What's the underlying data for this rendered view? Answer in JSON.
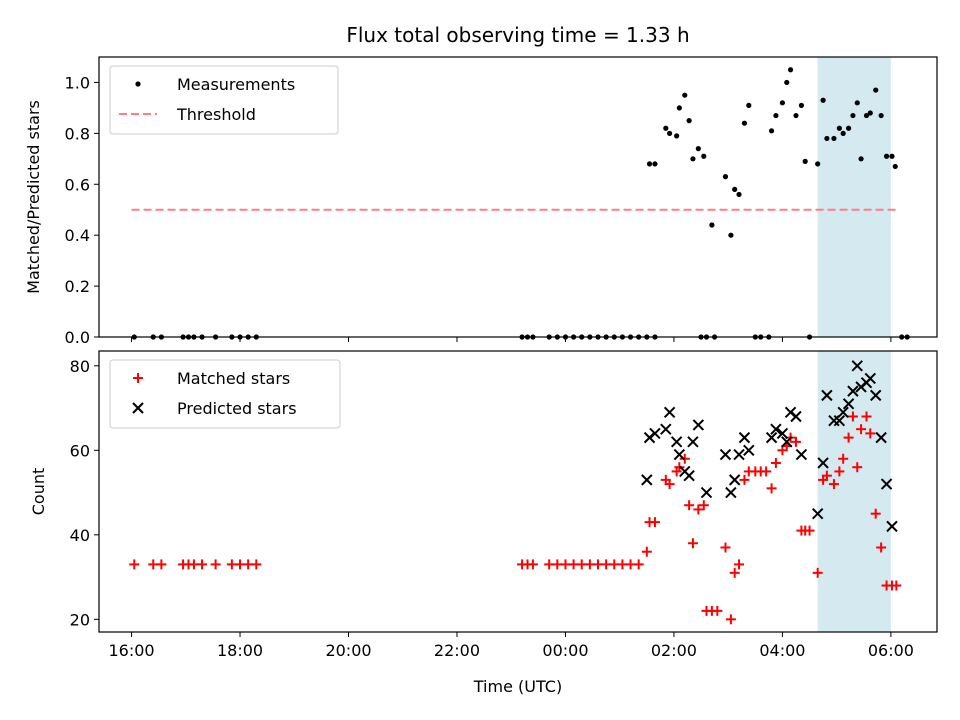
{
  "chart_data": {
    "title": "Flux total observing time = 1.33 h",
    "xlabel": "Time (UTC)",
    "x_units": "hours since 16:00 UTC",
    "x_ticks": [
      {
        "x": 0,
        "label": "16:00"
      },
      {
        "x": 2,
        "label": "18:00"
      },
      {
        "x": 4,
        "label": "20:00"
      },
      {
        "x": 6,
        "label": "22:00"
      },
      {
        "x": 8,
        "label": "00:00"
      },
      {
        "x": 10,
        "label": "02:00"
      },
      {
        "x": 12,
        "label": "04:00"
      },
      {
        "x": 14,
        "label": "06:00"
      }
    ],
    "xlim": [
      -0.6,
      14.85
    ],
    "highlight_span": [
      12.65,
      14.0
    ],
    "highlight_color": "#d4eaf0",
    "panels": [
      {
        "type": "scatter",
        "ylabel": "Matched/Predicted stars",
        "ylim": [
          0,
          1.1
        ],
        "y_ticks": [
          "0.0",
          "0.2",
          "0.4",
          "0.6",
          "0.8",
          "1.0"
        ],
        "legend": [
          "Measurements",
          "Threshold"
        ],
        "legend_position": "top-left",
        "threshold": {
          "name": "Threshold",
          "y": 0.5,
          "x_range": [
            0,
            14.1
          ],
          "color": "#ff7f7f"
        },
        "series": [
          {
            "name": "Measurements",
            "color": "#000000",
            "points": [
              [
                0.05,
                0
              ],
              [
                0.4,
                0
              ],
              [
                0.55,
                0
              ],
              [
                0.95,
                0
              ],
              [
                1.05,
                0
              ],
              [
                1.15,
                0
              ],
              [
                1.3,
                0
              ],
              [
                1.55,
                0
              ],
              [
                1.85,
                0
              ],
              [
                2.0,
                0
              ],
              [
                2.15,
                0
              ],
              [
                2.3,
                0
              ],
              [
                7.2,
                0
              ],
              [
                7.3,
                0
              ],
              [
                7.4,
                0
              ],
              [
                7.7,
                0
              ],
              [
                7.85,
                0
              ],
              [
                8.0,
                0
              ],
              [
                8.15,
                0
              ],
              [
                8.3,
                0
              ],
              [
                8.45,
                0
              ],
              [
                8.6,
                0
              ],
              [
                8.75,
                0
              ],
              [
                8.9,
                0
              ],
              [
                9.05,
                0
              ],
              [
                9.2,
                0
              ],
              [
                9.35,
                0
              ],
              [
                9.5,
                0
              ],
              [
                9.65,
                0
              ],
              [
                10.5,
                0
              ],
              [
                10.6,
                0
              ],
              [
                10.75,
                0
              ],
              [
                11.5,
                0
              ],
              [
                11.6,
                0
              ],
              [
                11.75,
                0
              ],
              [
                12.5,
                0
              ],
              [
                14.2,
                0
              ],
              [
                14.3,
                0
              ],
              [
                9.55,
                0.68
              ],
              [
                9.65,
                0.68
              ],
              [
                9.85,
                0.82
              ],
              [
                9.92,
                0.8
              ],
              [
                10.05,
                0.79
              ],
              [
                10.1,
                0.9
              ],
              [
                10.2,
                0.95
              ],
              [
                10.28,
                0.85
              ],
              [
                10.35,
                0.7
              ],
              [
                10.45,
                0.74
              ],
              [
                10.55,
                0.71
              ],
              [
                10.7,
                0.44
              ],
              [
                10.95,
                0.63
              ],
              [
                11.05,
                0.4
              ],
              [
                11.12,
                0.58
              ],
              [
                11.2,
                0.56
              ],
              [
                11.3,
                0.84
              ],
              [
                11.38,
                0.91
              ],
              [
                11.8,
                0.81
              ],
              [
                11.88,
                0.87
              ],
              [
                12.0,
                0.92
              ],
              [
                12.08,
                1.0
              ],
              [
                12.15,
                1.05
              ],
              [
                12.25,
                0.87
              ],
              [
                12.35,
                0.91
              ],
              [
                12.42,
                0.69
              ],
              [
                12.65,
                0.68
              ],
              [
                12.75,
                0.93
              ],
              [
                12.82,
                0.78
              ],
              [
                12.95,
                0.78
              ],
              [
                13.05,
                0.82
              ],
              [
                13.12,
                0.8
              ],
              [
                13.22,
                0.82
              ],
              [
                13.3,
                0.87
              ],
              [
                13.38,
                0.92
              ],
              [
                13.45,
                0.7
              ],
              [
                13.55,
                0.87
              ],
              [
                13.62,
                0.88
              ],
              [
                13.72,
                0.97
              ],
              [
                13.82,
                0.87
              ],
              [
                13.92,
                0.71
              ],
              [
                14.02,
                0.71
              ],
              [
                14.08,
                0.67
              ]
            ]
          }
        ]
      },
      {
        "type": "scatter",
        "ylabel": "Count",
        "ylim": [
          17,
          83.5
        ],
        "y_ticks": [
          "20",
          "40",
          "60",
          "80"
        ],
        "legend": [
          "Matched stars",
          "Predicted stars"
        ],
        "legend_position": "top-left",
        "series": [
          {
            "name": "Matched stars",
            "marker": "plus",
            "color": "#ff0000",
            "points": [
              [
                0.05,
                33
              ],
              [
                0.4,
                33
              ],
              [
                0.55,
                33
              ],
              [
                0.95,
                33
              ],
              [
                1.05,
                33
              ],
              [
                1.15,
                33
              ],
              [
                1.3,
                33
              ],
              [
                1.55,
                33
              ],
              [
                1.85,
                33
              ],
              [
                2.0,
                33
              ],
              [
                2.15,
                33
              ],
              [
                2.3,
                33
              ],
              [
                7.2,
                33
              ],
              [
                7.3,
                33
              ],
              [
                7.4,
                33
              ],
              [
                7.7,
                33
              ],
              [
                7.85,
                33
              ],
              [
                8.0,
                33
              ],
              [
                8.15,
                33
              ],
              [
                8.3,
                33
              ],
              [
                8.45,
                33
              ],
              [
                8.6,
                33
              ],
              [
                8.75,
                33
              ],
              [
                8.9,
                33
              ],
              [
                9.05,
                33
              ],
              [
                9.2,
                33
              ],
              [
                9.35,
                33
              ],
              [
                9.5,
                36
              ],
              [
                9.55,
                43
              ],
              [
                9.65,
                43
              ],
              [
                9.85,
                53
              ],
              [
                9.92,
                52
              ],
              [
                10.05,
                55
              ],
              [
                10.1,
                56
              ],
              [
                10.2,
                58
              ],
              [
                10.28,
                47
              ],
              [
                10.35,
                38
              ],
              [
                10.45,
                46
              ],
              [
                10.55,
                47
              ],
              [
                10.6,
                22
              ],
              [
                10.7,
                22
              ],
              [
                10.8,
                22
              ],
              [
                10.95,
                37
              ],
              [
                11.05,
                20
              ],
              [
                11.12,
                31
              ],
              [
                11.2,
                33
              ],
              [
                11.3,
                53
              ],
              [
                11.38,
                55
              ],
              [
                11.5,
                55
              ],
              [
                11.6,
                55
              ],
              [
                11.7,
                55
              ],
              [
                11.8,
                51
              ],
              [
                11.88,
                57
              ],
              [
                12.0,
                60
              ],
              [
                12.08,
                61
              ],
              [
                12.15,
                63
              ],
              [
                12.25,
                62
              ],
              [
                12.35,
                41
              ],
              [
                12.42,
                41
              ],
              [
                12.5,
                41
              ],
              [
                12.65,
                31
              ],
              [
                12.75,
                53
              ],
              [
                12.82,
                54
              ],
              [
                12.95,
                52
              ],
              [
                13.05,
                55
              ],
              [
                13.12,
                58
              ],
              [
                13.22,
                63
              ],
              [
                13.3,
                68
              ],
              [
                13.38,
                56
              ],
              [
                13.45,
                65
              ],
              [
                13.55,
                68
              ],
              [
                13.62,
                64
              ],
              [
                13.72,
                45
              ],
              [
                13.82,
                37
              ],
              [
                13.92,
                28
              ],
              [
                14.02,
                28
              ],
              [
                14.1,
                28
              ]
            ]
          },
          {
            "name": "Predicted stars",
            "marker": "x",
            "color": "#000000",
            "points": [
              [
                9.5,
                53
              ],
              [
                9.55,
                63
              ],
              [
                9.65,
                64
              ],
              [
                9.85,
                65
              ],
              [
                9.92,
                69
              ],
              [
                10.05,
                62
              ],
              [
                10.1,
                59
              ],
              [
                10.2,
                55
              ],
              [
                10.28,
                54
              ],
              [
                10.35,
                62
              ],
              [
                10.45,
                66
              ],
              [
                10.6,
                50
              ],
              [
                10.95,
                59
              ],
              [
                11.05,
                50
              ],
              [
                11.12,
                53
              ],
              [
                11.2,
                59
              ],
              [
                11.3,
                63
              ],
              [
                11.38,
                60
              ],
              [
                11.8,
                63
              ],
              [
                11.88,
                65
              ],
              [
                12.0,
                64
              ],
              [
                12.08,
                62
              ],
              [
                12.15,
                69
              ],
              [
                12.25,
                68
              ],
              [
                12.35,
                59
              ],
              [
                12.65,
                45
              ],
              [
                12.75,
                57
              ],
              [
                12.82,
                73
              ],
              [
                12.95,
                67
              ],
              [
                13.05,
                67
              ],
              [
                13.12,
                69
              ],
              [
                13.22,
                71
              ],
              [
                13.3,
                74
              ],
              [
                13.38,
                80
              ],
              [
                13.45,
                75
              ],
              [
                13.55,
                76
              ],
              [
                13.62,
                77
              ],
              [
                13.72,
                73
              ],
              [
                13.82,
                63
              ],
              [
                13.92,
                52
              ],
              [
                14.02,
                42
              ]
            ]
          }
        ]
      }
    ]
  }
}
